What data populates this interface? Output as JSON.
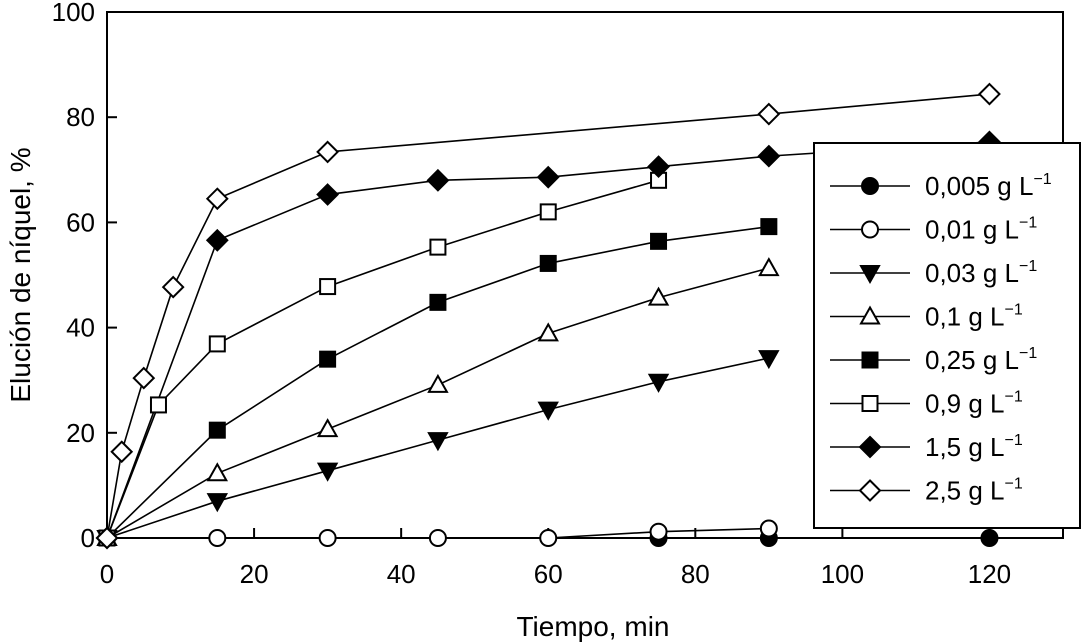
{
  "chart_data": {
    "type": "line",
    "xlabel": "Tiempo, min",
    "ylabel": "Elución de níquel, %",
    "xlim": [
      0,
      130
    ],
    "ylim": [
      0,
      100
    ],
    "xticks": [
      0,
      20,
      40,
      60,
      80,
      100,
      120
    ],
    "yticks": [
      0,
      20,
      40,
      60,
      80,
      100
    ],
    "grid": false,
    "legend_position": "right",
    "series": [
      {
        "name": "0,005 g L",
        "unit_exp": "−1",
        "marker": "circle",
        "fill": "filled",
        "x": [
          0,
          75,
          90,
          120
        ],
        "y": [
          0,
          0,
          0,
          0
        ]
      },
      {
        "name": "0,01 g L",
        "unit_exp": "−1",
        "marker": "circle",
        "fill": "open",
        "x": [
          0,
          15,
          30,
          45,
          60,
          75,
          90
        ],
        "y": [
          0,
          0,
          0,
          0,
          0,
          1.2,
          1.8
        ]
      },
      {
        "name": "0,03 g L",
        "unit_exp": "−1",
        "marker": "triangle-down",
        "fill": "filled",
        "x": [
          0,
          15,
          30,
          45,
          60,
          75,
          90
        ],
        "y": [
          0,
          7,
          12.8,
          18.6,
          24.4,
          29.7,
          34.2
        ]
      },
      {
        "name": "0,1 g L",
        "unit_exp": "−1",
        "marker": "triangle-up",
        "fill": "open",
        "x": [
          0,
          15,
          30,
          45,
          60,
          75,
          90
        ],
        "y": [
          0,
          12.3,
          20.7,
          29.1,
          38.9,
          45.7,
          51.3
        ]
      },
      {
        "name": "0,25 g L",
        "unit_exp": "−1",
        "marker": "square",
        "fill": "filled",
        "x": [
          0,
          15,
          30,
          45,
          60,
          75,
          90
        ],
        "y": [
          0,
          20.5,
          34,
          44.8,
          52.2,
          56.4,
          59.2
        ]
      },
      {
        "name": "0,9 g L",
        "unit_exp": "−1",
        "marker": "square",
        "fill": "open",
        "x": [
          0,
          7,
          15,
          30,
          45,
          60,
          75
        ],
        "y": [
          0,
          25.3,
          36.9,
          47.8,
          55.3,
          62,
          68
        ]
      },
      {
        "name": "1,5 g L",
        "unit_exp": "−1",
        "marker": "diamond",
        "fill": "filled",
        "x": [
          0,
          15,
          30,
          45,
          60,
          75,
          90,
          120
        ],
        "y": [
          0,
          56.6,
          65.3,
          68,
          68.6,
          70.6,
          72.6,
          75.3
        ]
      },
      {
        "name": "2,5 g L",
        "unit_exp": "−1",
        "marker": "diamond",
        "fill": "open",
        "x": [
          0,
          2,
          5,
          9,
          15,
          30,
          90,
          120
        ],
        "y": [
          0,
          16.4,
          30.4,
          47.7,
          64.5,
          73.4,
          80.6,
          84.4
        ]
      }
    ]
  }
}
